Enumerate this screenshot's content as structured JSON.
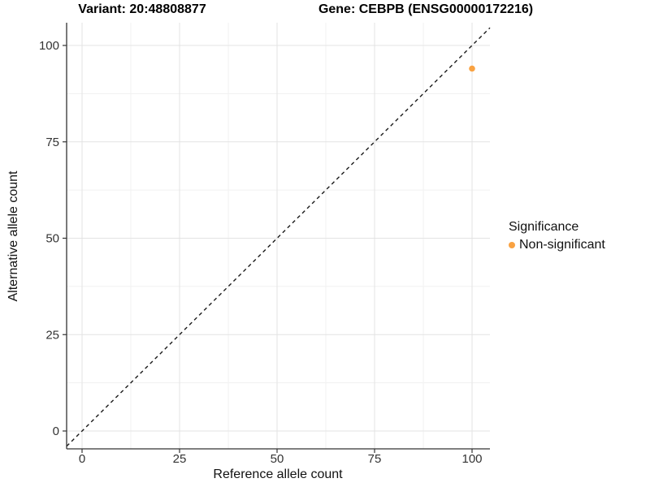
{
  "header": {
    "variant_title": "Variant: 20:48808877",
    "gene_title": "Gene: CEBPB (ENSG00000172216)"
  },
  "chart_data": {
    "type": "scatter",
    "title": "Variant: 20:48808877   Gene: CEBPB (ENSG00000172216)",
    "xlabel": "Reference allele count",
    "ylabel": "Alternative allele count",
    "xlim": [
      -5,
      105
    ],
    "ylim": [
      -5,
      105
    ],
    "xticks": [
      0,
      25,
      50,
      75,
      100
    ],
    "yticks": [
      0,
      25,
      50,
      75,
      100
    ],
    "minor_step": 12.5,
    "grid": "on",
    "points": [
      {
        "x": 100,
        "y": 94,
        "series": "Non-significant"
      }
    ],
    "identity_line": {
      "type": "dashed",
      "slope": 1,
      "intercept": 0,
      "color": "#1a1a1a"
    },
    "legend": {
      "position": "right",
      "title": "Significance",
      "items": [
        {
          "label": "Non-significant",
          "color": "#F9A242"
        }
      ]
    },
    "colors": {
      "point": "#F9A242",
      "grid_major": "#E3E3E3",
      "grid_minor": "#F1F1F1",
      "axis_line": "#333333",
      "tick_text": "#333333",
      "background": "#FFFFFF"
    }
  }
}
